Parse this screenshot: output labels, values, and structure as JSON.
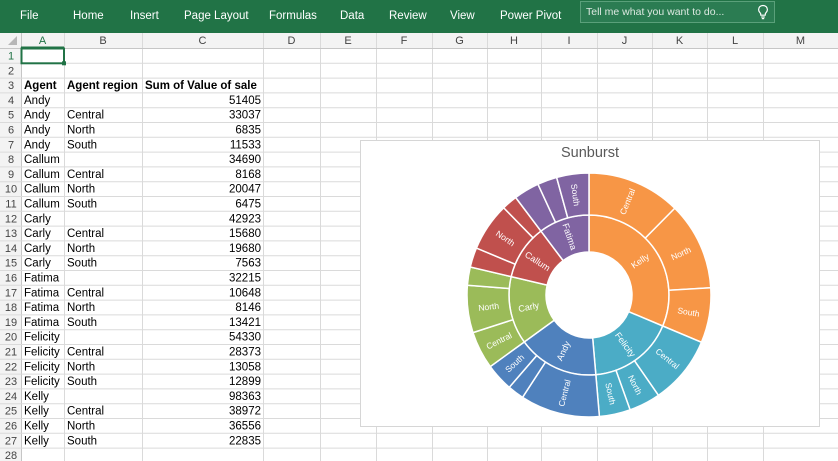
{
  "ribbon": {
    "tabs": [
      "File",
      "Home",
      "Insert",
      "Page Layout",
      "Formulas",
      "Data",
      "Review",
      "View",
      "Power Pivot"
    ],
    "tellme_placeholder": "Tell me what you want to do...",
    "bulb_icon": "lightbulb-icon",
    "color": "#217346"
  },
  "sheet": {
    "columns": [
      "A",
      "B",
      "C",
      "D",
      "E",
      "F",
      "G",
      "H",
      "I",
      "J",
      "K",
      "L",
      "M"
    ],
    "selected_cell": "A1",
    "headers": [
      "Agent",
      "Agent region",
      "Sum of Value of sale"
    ],
    "rows": [
      [
        "",
        "",
        ""
      ],
      [
        "",
        "",
        ""
      ],
      [
        "Agent",
        "Agent region",
        "Sum of Value of sale"
      ],
      [
        "Andy",
        "",
        "51405"
      ],
      [
        "Andy",
        "Central",
        "33037"
      ],
      [
        "Andy",
        "North",
        "6835"
      ],
      [
        "Andy",
        "South",
        "11533"
      ],
      [
        "Callum",
        "",
        "34690"
      ],
      [
        "Callum",
        "Central",
        "8168"
      ],
      [
        "Callum",
        "North",
        "20047"
      ],
      [
        "Callum",
        "South",
        "6475"
      ],
      [
        "Carly",
        "",
        "42923"
      ],
      [
        "Carly",
        "Central",
        "15680"
      ],
      [
        "Carly",
        "North",
        "19680"
      ],
      [
        "Carly",
        "South",
        "7563"
      ],
      [
        "Fatima",
        "",
        "32215"
      ],
      [
        "Fatima",
        "Central",
        "10648"
      ],
      [
        "Fatima",
        "North",
        "8146"
      ],
      [
        "Fatima",
        "South",
        "13421"
      ],
      [
        "Felicity",
        "",
        "54330"
      ],
      [
        "Felicity",
        "Central",
        "28373"
      ],
      [
        "Felicity",
        "North",
        "13058"
      ],
      [
        "Felicity",
        "South",
        "12899"
      ],
      [
        "Kelly",
        "",
        "98363"
      ],
      [
        "Kelly",
        "Central",
        "38972"
      ],
      [
        "Kelly",
        "North",
        "36556"
      ],
      [
        "Kelly",
        "South",
        "22835"
      ],
      [
        "",
        "",
        ""
      ]
    ]
  },
  "chart_data": {
    "type": "sunburst",
    "title": "Sunburst",
    "series": [
      {
        "name": "Kelly",
        "color": "#F79646",
        "total": 98363,
        "children": [
          {
            "name": "Central",
            "value": 38972
          },
          {
            "name": "North",
            "value": 36556
          },
          {
            "name": "South",
            "value": 22835
          }
        ]
      },
      {
        "name": "Felicity",
        "color": "#4BACC6",
        "total": 54330,
        "children": [
          {
            "name": "Central",
            "value": 28373
          },
          {
            "name": "North",
            "value": 13058
          },
          {
            "name": "South",
            "value": 12899
          }
        ]
      },
      {
        "name": "Andy",
        "color": "#4F81BD",
        "total": 51405,
        "children": [
          {
            "name": "Central",
            "value": 33037
          },
          {
            "name": "North",
            "value": 6835
          },
          {
            "name": "South",
            "value": 11533
          }
        ]
      },
      {
        "name": "Carly",
        "color": "#9BBB59",
        "total": 42923,
        "children": [
          {
            "name": "Central",
            "value": 15680
          },
          {
            "name": "North",
            "value": 19680
          },
          {
            "name": "South",
            "value": 7563
          }
        ]
      },
      {
        "name": "Callum",
        "color": "#C0504D",
        "total": 34690,
        "children": [
          {
            "name": "Central",
            "value": 8168
          },
          {
            "name": "North",
            "value": 20047
          },
          {
            "name": "South",
            "value": 6475
          }
        ]
      },
      {
        "name": "Fatima",
        "color": "#8064A2",
        "total": 32215,
        "children": [
          {
            "name": "Central",
            "value": 10648
          },
          {
            "name": "North",
            "value": 8146
          },
          {
            "name": "South",
            "value": 13421
          }
        ]
      }
    ]
  }
}
